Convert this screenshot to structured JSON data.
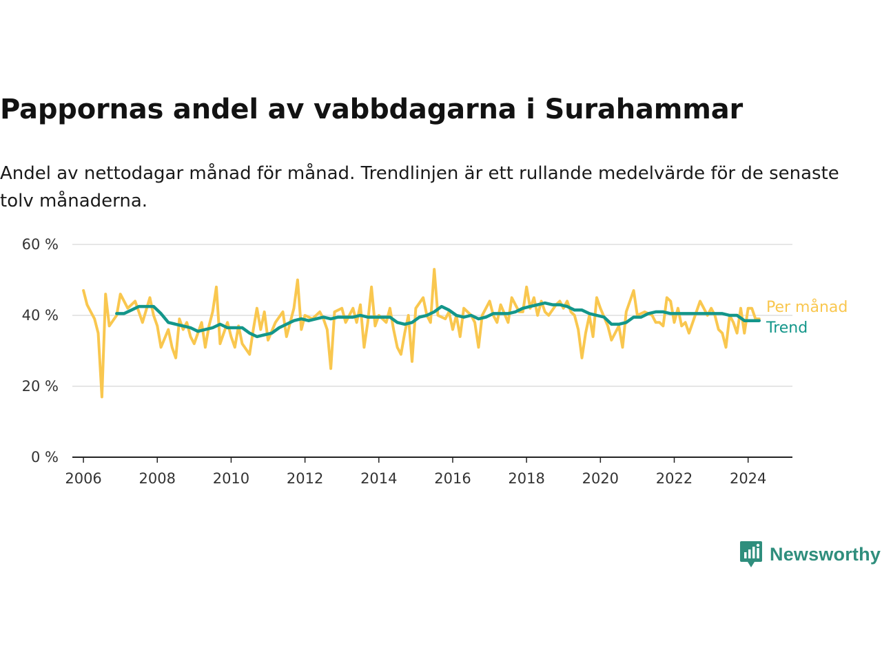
{
  "header": {
    "title": "Pappornas andel av vabbdagarna i Surahammar",
    "subtitle": "Andel av nettodagar månad för månad. Trendlinjen är ett rullande medelvärde för de senaste tolv månaderna."
  },
  "brand": {
    "name": "Newsworthy",
    "color": "#2f8e7d"
  },
  "chart_data": {
    "type": "line",
    "title": "Pappornas andel av vabbdagarna i Surahammar",
    "subtitle": "Andel av nettodagar månad för månad. Trendlinjen är ett rullande medelvärde för de senaste tolv månaderna.",
    "xlabel": "",
    "ylabel": "",
    "xlim": [
      2005.7,
      2025.2
    ],
    "ylim": [
      0,
      60
    ],
    "x_ticks": [
      2006,
      2008,
      2010,
      2012,
      2014,
      2016,
      2018,
      2020,
      2022,
      2024
    ],
    "y_ticks": [
      {
        "value": 0,
        "label": "0 %"
      },
      {
        "value": 20,
        "label": "20 %"
      },
      {
        "value": 40,
        "label": "40 %"
      },
      {
        "value": 60,
        "label": "60 %"
      }
    ],
    "grid": true,
    "legend": "right end of lines",
    "series": [
      {
        "name": "Per månad",
        "color": "#f9c74f",
        "points": [
          [
            2006.0,
            47
          ],
          [
            2006.1,
            43
          ],
          [
            2006.2,
            41
          ],
          [
            2006.3,
            39
          ],
          [
            2006.4,
            35
          ],
          [
            2006.5,
            17
          ],
          [
            2006.6,
            46
          ],
          [
            2006.7,
            37
          ],
          [
            2006.9,
            40
          ],
          [
            2007.0,
            46
          ],
          [
            2007.2,
            42
          ],
          [
            2007.4,
            44
          ],
          [
            2007.6,
            38
          ],
          [
            2007.8,
            45
          ],
          [
            2007.9,
            40
          ],
          [
            2008.0,
            37
          ],
          [
            2008.1,
            31
          ],
          [
            2008.3,
            36
          ],
          [
            2008.4,
            31
          ],
          [
            2008.5,
            28
          ],
          [
            2008.6,
            39
          ],
          [
            2008.7,
            36
          ],
          [
            2008.8,
            38
          ],
          [
            2008.9,
            34
          ],
          [
            2009.0,
            32
          ],
          [
            2009.2,
            38
          ],
          [
            2009.3,
            31
          ],
          [
            2009.4,
            37
          ],
          [
            2009.5,
            41
          ],
          [
            2009.6,
            48
          ],
          [
            2009.7,
            32
          ],
          [
            2009.9,
            38
          ],
          [
            2010.0,
            34
          ],
          [
            2010.1,
            31
          ],
          [
            2010.2,
            37
          ],
          [
            2010.3,
            32
          ],
          [
            2010.5,
            29
          ],
          [
            2010.6,
            36
          ],
          [
            2010.7,
            42
          ],
          [
            2010.8,
            36
          ],
          [
            2010.9,
            41
          ],
          [
            2011.0,
            33
          ],
          [
            2011.2,
            38
          ],
          [
            2011.4,
            41
          ],
          [
            2011.5,
            34
          ],
          [
            2011.7,
            42
          ],
          [
            2011.8,
            50
          ],
          [
            2011.9,
            36
          ],
          [
            2012.0,
            40
          ],
          [
            2012.2,
            39
          ],
          [
            2012.4,
            41
          ],
          [
            2012.5,
            39
          ],
          [
            2012.6,
            36
          ],
          [
            2012.7,
            25
          ],
          [
            2012.8,
            41
          ],
          [
            2013.0,
            42
          ],
          [
            2013.1,
            38
          ],
          [
            2013.3,
            42
          ],
          [
            2013.4,
            38
          ],
          [
            2013.5,
            43
          ],
          [
            2013.6,
            31
          ],
          [
            2013.7,
            38
          ],
          [
            2013.8,
            48
          ],
          [
            2013.9,
            37
          ],
          [
            2014.0,
            40
          ],
          [
            2014.2,
            38
          ],
          [
            2014.3,
            42
          ],
          [
            2014.4,
            36
          ],
          [
            2014.5,
            31
          ],
          [
            2014.6,
            29
          ],
          [
            2014.7,
            35
          ],
          [
            2014.8,
            40
          ],
          [
            2014.9,
            27
          ],
          [
            2015.0,
            42
          ],
          [
            2015.2,
            45
          ],
          [
            2015.3,
            40
          ],
          [
            2015.4,
            38
          ],
          [
            2015.5,
            53
          ],
          [
            2015.6,
            40
          ],
          [
            2015.8,
            39
          ],
          [
            2015.9,
            41
          ],
          [
            2016.0,
            36
          ],
          [
            2016.1,
            40
          ],
          [
            2016.2,
            34
          ],
          [
            2016.3,
            42
          ],
          [
            2016.5,
            40
          ],
          [
            2016.6,
            38
          ],
          [
            2016.7,
            31
          ],
          [
            2016.8,
            40
          ],
          [
            2017.0,
            44
          ],
          [
            2017.1,
            40
          ],
          [
            2017.2,
            38
          ],
          [
            2017.3,
            43
          ],
          [
            2017.5,
            38
          ],
          [
            2017.6,
            45
          ],
          [
            2017.8,
            41
          ],
          [
            2017.9,
            41
          ],
          [
            2018.0,
            48
          ],
          [
            2018.1,
            42
          ],
          [
            2018.2,
            45
          ],
          [
            2018.3,
            40
          ],
          [
            2018.4,
            44
          ],
          [
            2018.5,
            41
          ],
          [
            2018.6,
            40
          ],
          [
            2018.8,
            43
          ],
          [
            2018.9,
            44
          ],
          [
            2019.0,
            42
          ],
          [
            2019.1,
            44
          ],
          [
            2019.2,
            41
          ],
          [
            2019.3,
            40
          ],
          [
            2019.4,
            36
          ],
          [
            2019.5,
            28
          ],
          [
            2019.6,
            35
          ],
          [
            2019.7,
            40
          ],
          [
            2019.8,
            34
          ],
          [
            2019.9,
            45
          ],
          [
            2020.0,
            42
          ],
          [
            2020.2,
            37
          ],
          [
            2020.3,
            33
          ],
          [
            2020.5,
            37
          ],
          [
            2020.6,
            31
          ],
          [
            2020.7,
            41
          ],
          [
            2020.8,
            44
          ],
          [
            2020.9,
            47
          ],
          [
            2021.0,
            40
          ],
          [
            2021.2,
            41
          ],
          [
            2021.4,
            40
          ],
          [
            2021.5,
            38
          ],
          [
            2021.6,
            38
          ],
          [
            2021.7,
            37
          ],
          [
            2021.8,
            45
          ],
          [
            2021.9,
            44
          ],
          [
            2022.0,
            38
          ],
          [
            2022.1,
            42
          ],
          [
            2022.2,
            37
          ],
          [
            2022.3,
            38
          ],
          [
            2022.4,
            35
          ],
          [
            2022.5,
            38
          ],
          [
            2022.7,
            44
          ],
          [
            2022.8,
            42
          ],
          [
            2022.9,
            40
          ],
          [
            2023.0,
            42
          ],
          [
            2023.1,
            40
          ],
          [
            2023.2,
            36
          ],
          [
            2023.3,
            35
          ],
          [
            2023.4,
            31
          ],
          [
            2023.5,
            40
          ],
          [
            2023.6,
            38
          ],
          [
            2023.7,
            35
          ],
          [
            2023.8,
            42
          ],
          [
            2023.9,
            35
          ],
          [
            2024.0,
            42
          ],
          [
            2024.1,
            42
          ],
          [
            2024.2,
            39
          ],
          [
            2024.3,
            39
          ]
        ]
      },
      {
        "name": "Trend",
        "color": "#13968a",
        "points": [
          [
            2006.9,
            40.5
          ],
          [
            2007.1,
            40.5
          ],
          [
            2007.3,
            41.5
          ],
          [
            2007.5,
            42.5
          ],
          [
            2007.7,
            42.5
          ],
          [
            2007.9,
            42.5
          ],
          [
            2008.1,
            40.5
          ],
          [
            2008.3,
            38
          ],
          [
            2008.5,
            37.5
          ],
          [
            2008.7,
            37
          ],
          [
            2008.9,
            36.5
          ],
          [
            2009.1,
            35.5
          ],
          [
            2009.3,
            36
          ],
          [
            2009.5,
            36.5
          ],
          [
            2009.7,
            37.5
          ],
          [
            2009.9,
            36.5
          ],
          [
            2010.1,
            36.5
          ],
          [
            2010.3,
            36.5
          ],
          [
            2010.5,
            35
          ],
          [
            2010.7,
            34
          ],
          [
            2010.9,
            34.5
          ],
          [
            2011.1,
            35
          ],
          [
            2011.3,
            36.5
          ],
          [
            2011.5,
            37.5
          ],
          [
            2011.7,
            38.5
          ],
          [
            2011.9,
            39
          ],
          [
            2012.1,
            38.5
          ],
          [
            2012.3,
            39
          ],
          [
            2012.5,
            39.5
          ],
          [
            2012.7,
            39
          ],
          [
            2012.9,
            39.5
          ],
          [
            2013.1,
            39.5
          ],
          [
            2013.3,
            39.5
          ],
          [
            2013.5,
            40
          ],
          [
            2013.7,
            39.5
          ],
          [
            2013.9,
            39.5
          ],
          [
            2014.1,
            39.5
          ],
          [
            2014.3,
            39.5
          ],
          [
            2014.5,
            38
          ],
          [
            2014.7,
            37.5
          ],
          [
            2014.9,
            38
          ],
          [
            2015.1,
            39.5
          ],
          [
            2015.3,
            40
          ],
          [
            2015.5,
            41
          ],
          [
            2015.7,
            42.5
          ],
          [
            2015.9,
            41.5
          ],
          [
            2016.1,
            40
          ],
          [
            2016.3,
            39.5
          ],
          [
            2016.5,
            40
          ],
          [
            2016.7,
            39
          ],
          [
            2016.9,
            39.5
          ],
          [
            2017.1,
            40.5
          ],
          [
            2017.3,
            40.5
          ],
          [
            2017.5,
            40.5
          ],
          [
            2017.7,
            41
          ],
          [
            2017.9,
            42
          ],
          [
            2018.1,
            42.5
          ],
          [
            2018.3,
            43
          ],
          [
            2018.5,
            43.5
          ],
          [
            2018.7,
            43
          ],
          [
            2018.9,
            43
          ],
          [
            2019.1,
            42.5
          ],
          [
            2019.3,
            41.5
          ],
          [
            2019.5,
            41.5
          ],
          [
            2019.7,
            40.5
          ],
          [
            2019.9,
            40
          ],
          [
            2020.1,
            39.5
          ],
          [
            2020.3,
            37.5
          ],
          [
            2020.5,
            37.5
          ],
          [
            2020.7,
            38
          ],
          [
            2020.9,
            39.5
          ],
          [
            2021.1,
            39.5
          ],
          [
            2021.3,
            40.5
          ],
          [
            2021.5,
            41
          ],
          [
            2021.7,
            41
          ],
          [
            2021.9,
            40.5
          ],
          [
            2022.1,
            40.5
          ],
          [
            2022.3,
            40.5
          ],
          [
            2022.5,
            40.5
          ],
          [
            2022.7,
            40.5
          ],
          [
            2022.9,
            40.5
          ],
          [
            2023.1,
            40.5
          ],
          [
            2023.3,
            40.5
          ],
          [
            2023.5,
            40
          ],
          [
            2023.7,
            40
          ],
          [
            2023.9,
            38.5
          ],
          [
            2024.1,
            38.5
          ],
          [
            2024.3,
            38.5
          ]
        ]
      }
    ]
  }
}
